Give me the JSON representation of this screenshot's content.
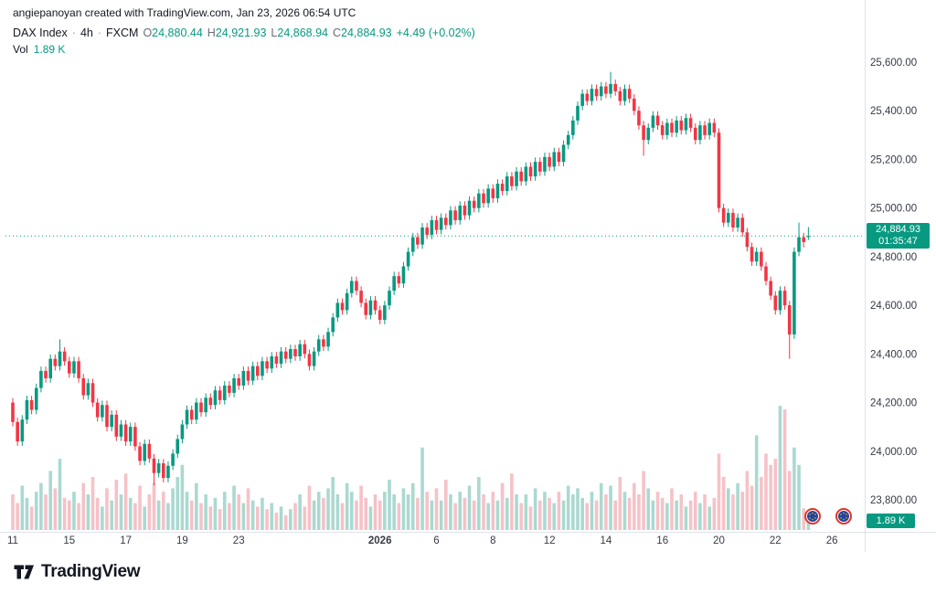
{
  "attribution": "angiepanoyan created with TradingView.com, Jan 23, 2026 06:54 UTC",
  "legend": {
    "symbol": "DAX Index",
    "separator": "·",
    "interval": "4h",
    "exchange": "FXCM",
    "o_label": "O",
    "o": "24,880.44",
    "h_label": "H",
    "h": "24,921.93",
    "l_label": "L",
    "l": "24,868.94",
    "c_label": "C",
    "c": "24,884.93",
    "change": "+4.49 (+0.02%)",
    "vol_label": "Vol",
    "vol_value": "1.89 K"
  },
  "price_label": {
    "price": "24,884.93",
    "countdown": "01:35:47"
  },
  "volume_label": "1.89 K",
  "logo_text": "TradingView",
  "colors": {
    "up": "#089981",
    "down": "#f23645",
    "vol_up": "#aad9d1",
    "vol_down": "#f5c2c7",
    "accent": "#089981",
    "axis_text": "#363a45",
    "separator": "#e0e3eb"
  },
  "chart_data": {
    "type": "candlestick",
    "title": "DAX Index · 4h · FXCM",
    "symbol": "DAX Index",
    "interval": "4h",
    "exchange": "FXCM",
    "grid": false,
    "legend_position": "top-left",
    "current_price": 24884.93,
    "current_candle": {
      "open": 24880.44,
      "high": 24921.93,
      "low": 24868.94,
      "close": 24884.93,
      "change": 4.49,
      "change_pct": 0.02
    },
    "current_volume_k": 1.89,
    "ylim": [
      23700,
      25700
    ],
    "price_axis_ticks": [
      {
        "value": 25600,
        "label": "25,600.00"
      },
      {
        "value": 25400,
        "label": "25,400.00"
      },
      {
        "value": 25200,
        "label": "25,200.00"
      },
      {
        "value": 25000,
        "label": "25,000.00"
      },
      {
        "value": 24800,
        "label": "24,800.00"
      },
      {
        "value": 24600,
        "label": "24,600.00"
      },
      {
        "value": 24400,
        "label": "24,400.00"
      },
      {
        "value": 24200,
        "label": "24,200.00"
      },
      {
        "value": 24000,
        "label": "24,000.00"
      },
      {
        "value": 23800,
        "label": "23,800.00"
      }
    ],
    "time_axis_ticks": [
      {
        "label": "11",
        "idx": 0
      },
      {
        "label": "15",
        "idx": 12
      },
      {
        "label": "17",
        "idx": 24
      },
      {
        "label": "19",
        "idx": 36
      },
      {
        "label": "23",
        "idx": 48
      },
      {
        "label": "2026",
        "idx": 78,
        "bold": true
      },
      {
        "label": "6",
        "idx": 90
      },
      {
        "label": "8",
        "idx": 102
      },
      {
        "label": "12",
        "idx": 114
      },
      {
        "label": "14",
        "idx": 126
      },
      {
        "label": "16",
        "idx": 138
      },
      {
        "label": "20",
        "idx": 150
      },
      {
        "label": "22",
        "idx": 162
      },
      {
        "label": "26",
        "idx": 174
      }
    ],
    "candles_ohlc": [
      [
        24200,
        24218,
        24102,
        24120
      ],
      [
        24120,
        24138,
        24022,
        24040
      ],
      [
        24040,
        24148,
        24022,
        24130
      ],
      [
        24130,
        24228,
        24112,
        24210
      ],
      [
        24210,
        24228,
        24152,
        24170
      ],
      [
        24170,
        24278,
        24152,
        24260
      ],
      [
        24260,
        24348,
        24242,
        24330
      ],
      [
        24330,
        24348,
        24282,
        24300
      ],
      [
        24300,
        24398,
        24282,
        24380
      ],
      [
        24380,
        24398,
        24332,
        24350
      ],
      [
        24350,
        24460,
        24332,
        24410
      ],
      [
        24410,
        24428,
        24352,
        24370
      ],
      [
        24370,
        24388,
        24302,
        24320
      ],
      [
        24320,
        24388,
        24302,
        24370
      ],
      [
        24370,
        24388,
        24282,
        24300
      ],
      [
        24300,
        24318,
        24212,
        24230
      ],
      [
        24230,
        24298,
        24212,
        24280
      ],
      [
        24280,
        24298,
        24182,
        24200
      ],
      [
        24200,
        24218,
        24122,
        24140
      ],
      [
        24140,
        24208,
        24122,
        24190
      ],
      [
        24190,
        24208,
        24082,
        24100
      ],
      [
        24100,
        24168,
        24082,
        24150
      ],
      [
        24150,
        24168,
        24042,
        24060
      ],
      [
        24060,
        24128,
        24042,
        24110
      ],
      [
        24110,
        24128,
        24022,
        24040
      ],
      [
        24040,
        24118,
        24022,
        24100
      ],
      [
        24100,
        24118,
        24002,
        24020
      ],
      [
        24020,
        24038,
        23942,
        23960
      ],
      [
        23960,
        24048,
        23942,
        24030
      ],
      [
        24030,
        24048,
        23952,
        23970
      ],
      [
        23970,
        23988,
        23860,
        23910
      ],
      [
        23910,
        23968,
        23892,
        23950
      ],
      [
        23950,
        23968,
        23872,
        23890
      ],
      [
        23890,
        23958,
        23872,
        23940
      ],
      [
        23940,
        24008,
        23922,
        23990
      ],
      [
        23990,
        24068,
        23972,
        24050
      ],
      [
        24050,
        24128,
        24032,
        24110
      ],
      [
        24110,
        24188,
        24092,
        24170
      ],
      [
        24170,
        24188,
        24112,
        24130
      ],
      [
        24130,
        24218,
        24112,
        24200
      ],
      [
        24200,
        24218,
        24142,
        24160
      ],
      [
        24160,
        24238,
        24142,
        24220
      ],
      [
        24220,
        24238,
        24172,
        24190
      ],
      [
        24190,
        24268,
        24172,
        24250
      ],
      [
        24250,
        24268,
        24192,
        24210
      ],
      [
        24210,
        24288,
        24192,
        24270
      ],
      [
        24270,
        24288,
        24222,
        24240
      ],
      [
        24240,
        24318,
        24222,
        24300
      ],
      [
        24300,
        24318,
        24252,
        24270
      ],
      [
        24270,
        24348,
        24252,
        24330
      ],
      [
        24330,
        24348,
        24272,
        24290
      ],
      [
        24290,
        24368,
        24272,
        24350
      ],
      [
        24350,
        24368,
        24292,
        24310
      ],
      [
        24310,
        24388,
        24292,
        24370
      ],
      [
        24370,
        24388,
        24322,
        24340
      ],
      [
        24340,
        24408,
        24322,
        24390
      ],
      [
        24390,
        24408,
        24342,
        24360
      ],
      [
        24360,
        24428,
        24342,
        24410
      ],
      [
        24410,
        24428,
        24362,
        24380
      ],
      [
        24380,
        24438,
        24362,
        24420
      ],
      [
        24420,
        24438,
        24372,
        24390
      ],
      [
        24390,
        24458,
        24372,
        24440
      ],
      [
        24440,
        24458,
        24382,
        24400
      ],
      [
        24400,
        24418,
        24332,
        24350
      ],
      [
        24350,
        24428,
        24332,
        24410
      ],
      [
        24410,
        24478,
        24392,
        24460
      ],
      [
        24460,
        24478,
        24412,
        24430
      ],
      [
        24430,
        24508,
        24412,
        24490
      ],
      [
        24490,
        24568,
        24472,
        24550
      ],
      [
        24550,
        24628,
        24532,
        24610
      ],
      [
        24610,
        24628,
        24562,
        24580
      ],
      [
        24580,
        24668,
        24562,
        24650
      ],
      [
        24650,
        24718,
        24632,
        24700
      ],
      [
        24700,
        24718,
        24642,
        24660
      ],
      [
        24660,
        24678,
        24592,
        24610
      ],
      [
        24610,
        24628,
        24542,
        24560
      ],
      [
        24560,
        24638,
        24542,
        24620
      ],
      [
        24620,
        24638,
        24562,
        24580
      ],
      [
        24580,
        24598,
        24522,
        24540
      ],
      [
        24540,
        24618,
        24522,
        24600
      ],
      [
        24600,
        24678,
        24582,
        24660
      ],
      [
        24660,
        24738,
        24642,
        24720
      ],
      [
        24720,
        24738,
        24672,
        24690
      ],
      [
        24690,
        24778,
        24672,
        24760
      ],
      [
        24760,
        24838,
        24742,
        24820
      ],
      [
        24820,
        24898,
        24802,
        24880
      ],
      [
        24880,
        24898,
        24832,
        24850
      ],
      [
        24850,
        24938,
        24832,
        24920
      ],
      [
        24920,
        24938,
        24872,
        24890
      ],
      [
        24890,
        24968,
        24872,
        24950
      ],
      [
        24950,
        24968,
        24892,
        24910
      ],
      [
        24910,
        24978,
        24892,
        24960
      ],
      [
        24960,
        24978,
        24912,
        24930
      ],
      [
        24930,
        25008,
        24912,
        24990
      ],
      [
        24990,
        25008,
        24932,
        24950
      ],
      [
        24950,
        25028,
        24932,
        25010
      ],
      [
        25010,
        25028,
        24952,
        24970
      ],
      [
        24970,
        25048,
        24952,
        25030
      ],
      [
        25030,
        25048,
        24982,
        25000
      ],
      [
        25000,
        25078,
        24982,
        25060
      ],
      [
        25060,
        25078,
        25002,
        25020
      ],
      [
        25020,
        25098,
        25002,
        25080
      ],
      [
        25080,
        25098,
        25022,
        25040
      ],
      [
        25040,
        25118,
        25022,
        25100
      ],
      [
        25100,
        25118,
        25052,
        25070
      ],
      [
        25070,
        25148,
        25052,
        25130
      ],
      [
        25130,
        25148,
        25072,
        25090
      ],
      [
        25090,
        25168,
        25072,
        25150
      ],
      [
        25150,
        25168,
        25092,
        25110
      ],
      [
        25110,
        25188,
        25092,
        25170
      ],
      [
        25170,
        25188,
        25112,
        25130
      ],
      [
        25130,
        25208,
        25112,
        25190
      ],
      [
        25190,
        25208,
        25132,
        25150
      ],
      [
        25150,
        25228,
        25132,
        25210
      ],
      [
        25210,
        25228,
        25152,
        25170
      ],
      [
        25170,
        25248,
        25152,
        25230
      ],
      [
        25230,
        25248,
        25172,
        25190
      ],
      [
        25190,
        25278,
        25172,
        25260
      ],
      [
        25260,
        25318,
        25242,
        25300
      ],
      [
        25300,
        25378,
        25282,
        25360
      ],
      [
        25360,
        25438,
        25342,
        25420
      ],
      [
        25420,
        25488,
        25402,
        25470
      ],
      [
        25470,
        25488,
        25422,
        25440
      ],
      [
        25440,
        25508,
        25422,
        25490
      ],
      [
        25490,
        25508,
        25442,
        25460
      ],
      [
        25460,
        25518,
        25442,
        25500
      ],
      [
        25500,
        25518,
        25452,
        25470
      ],
      [
        25470,
        25560,
        25452,
        25510
      ],
      [
        25510,
        25528,
        25462,
        25480
      ],
      [
        25480,
        25498,
        25422,
        25440
      ],
      [
        25440,
        25508,
        25422,
        25490
      ],
      [
        25490,
        25508,
        25432,
        25450
      ],
      [
        25450,
        25468,
        25382,
        25400
      ],
      [
        25400,
        25418,
        25322,
        25340
      ],
      [
        25340,
        25358,
        25215,
        25280
      ],
      [
        25280,
        25348,
        25262,
        25330
      ],
      [
        25330,
        25398,
        25312,
        25380
      ],
      [
        25380,
        25398,
        25322,
        25340
      ],
      [
        25340,
        25358,
        25282,
        25300
      ],
      [
        25300,
        25368,
        25282,
        25350
      ],
      [
        25350,
        25368,
        25292,
        25310
      ],
      [
        25310,
        25378,
        25292,
        25360
      ],
      [
        25360,
        25378,
        25302,
        25320
      ],
      [
        25320,
        25388,
        25302,
        25370
      ],
      [
        25370,
        25388,
        25312,
        25330
      ],
      [
        25330,
        25348,
        25262,
        25280
      ],
      [
        25280,
        25358,
        25262,
        25340
      ],
      [
        25340,
        25358,
        25282,
        25300
      ],
      [
        25300,
        25368,
        25282,
        25350
      ],
      [
        25350,
        25368,
        25292,
        25310
      ],
      [
        25310,
        25328,
        24982,
        25000
      ],
      [
        25000,
        25018,
        24922,
        24940
      ],
      [
        24940,
        24998,
        24922,
        24980
      ],
      [
        24980,
        24998,
        24902,
        24920
      ],
      [
        24920,
        24978,
        24902,
        24960
      ],
      [
        24960,
        24978,
        24882,
        24900
      ],
      [
        24900,
        24918,
        24822,
        24840
      ],
      [
        24840,
        24858,
        24762,
        24780
      ],
      [
        24780,
        24838,
        24762,
        24820
      ],
      [
        24820,
        24838,
        24742,
        24760
      ],
      [
        24760,
        24778,
        24682,
        24700
      ],
      [
        24700,
        24718,
        24622,
        24640
      ],
      [
        24640,
        24658,
        24562,
        24580
      ],
      [
        24580,
        24678,
        24562,
        24660
      ],
      [
        24660,
        24678,
        24582,
        24600
      ],
      [
        24600,
        24618,
        24380,
        24480
      ],
      [
        24480,
        24838,
        24462,
        24820
      ],
      [
        24820,
        24940,
        24802,
        24880
      ],
      [
        24880,
        24898,
        24838,
        24860
      ],
      [
        24880.44,
        24921.93,
        24868.94,
        24884.93
      ]
    ],
    "volumes_k": [
      4.1,
      3.1,
      5.1,
      3.7,
      2.7,
      4.4,
      5.4,
      4.1,
      6.8,
      4.8,
      8.2,
      3.7,
      3.4,
      4.4,
      3.1,
      5.4,
      4.1,
      6.1,
      3.7,
      2.7,
      4.8,
      3.4,
      5.8,
      4.1,
      6.5,
      3.7,
      3.1,
      5.1,
      2.7,
      4.1,
      5.4,
      3.4,
      4.4,
      3.1,
      4.8,
      6.1,
      7.5,
      4.4,
      3.4,
      5.4,
      3.1,
      4.1,
      2.7,
      3.7,
      2.4,
      4.4,
      3.1,
      5.1,
      4.1,
      3.1,
      4.8,
      3.4,
      2.7,
      3.7,
      2.4,
      3.1,
      2.0,
      2.7,
      1.7,
      2.4,
      3.1,
      4.1,
      2.7,
      5.1,
      3.4,
      4.4,
      3.7,
      4.8,
      6.1,
      4.1,
      3.1,
      5.4,
      4.4,
      3.4,
      5.1,
      3.7,
      2.7,
      4.1,
      3.4,
      4.4,
      5.8,
      4.1,
      3.1,
      4.8,
      4.1,
      5.4,
      3.7,
      9.5,
      4.4,
      3.4,
      4.8,
      3.4,
      5.8,
      4.1,
      3.1,
      4.4,
      3.7,
      5.1,
      3.4,
      6.1,
      4.1,
      3.1,
      4.4,
      3.4,
      5.4,
      3.7,
      6.5,
      4.1,
      3.1,
      4.1,
      2.7,
      4.8,
      3.4,
      4.4,
      3.7,
      3.1,
      4.4,
      3.4,
      5.1,
      4.1,
      4.8,
      3.7,
      3.1,
      4.4,
      3.4,
      5.4,
      4.1,
      5.1,
      3.4,
      6.1,
      4.4,
      3.7,
      5.4,
      4.1,
      6.8,
      4.8,
      3.4,
      4.4,
      3.7,
      3.1,
      4.8,
      3.4,
      4.1,
      2.7,
      3.4,
      4.4,
      3.1,
      4.1,
      2.7,
      3.7,
      8.8,
      6.1,
      4.8,
      4.1,
      5.4,
      4.4,
      6.8,
      5.1,
      10.9,
      6.1,
      8.8,
      7.5,
      8.2,
      14.3,
      13.9,
      6.8,
      9.5,
      7.5,
      2.5,
      1.89
    ]
  }
}
